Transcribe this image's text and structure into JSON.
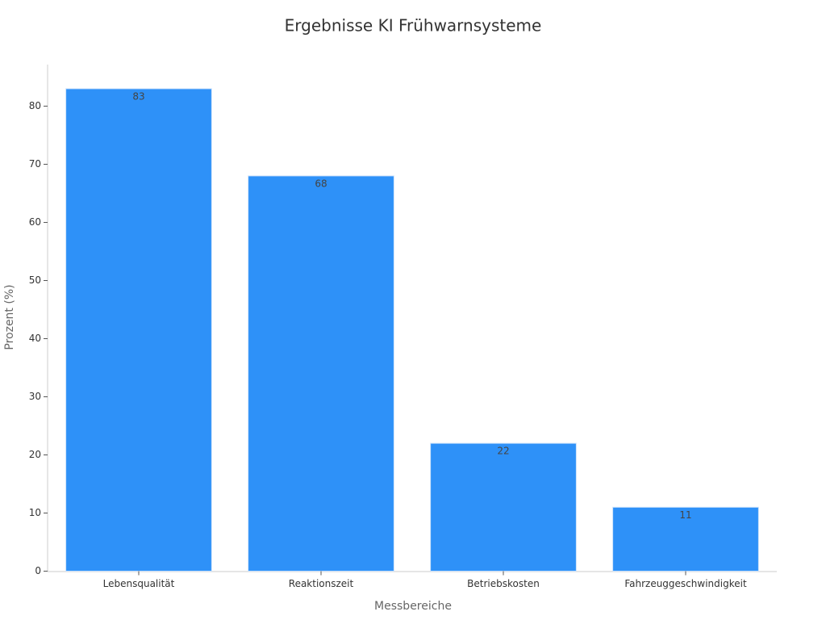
{
  "chart_data": {
    "type": "bar",
    "title": "Ergebnisse KI Frühwarnsysteme",
    "x_label": "Messbereiche",
    "y_label": "Prozent (%)",
    "categories": [
      "Lebensqualität",
      "Reaktionszeit",
      "Betriebskosten",
      "Fahrzeuggeschwindigkeit"
    ],
    "values": [
      83,
      68,
      22,
      11
    ],
    "color": "#2e91f8",
    "ylim": [
      0,
      87.15
    ],
    "yticks": [
      0,
      10,
      20,
      30,
      40,
      50,
      60,
      70,
      80
    ],
    "grid": false
  }
}
